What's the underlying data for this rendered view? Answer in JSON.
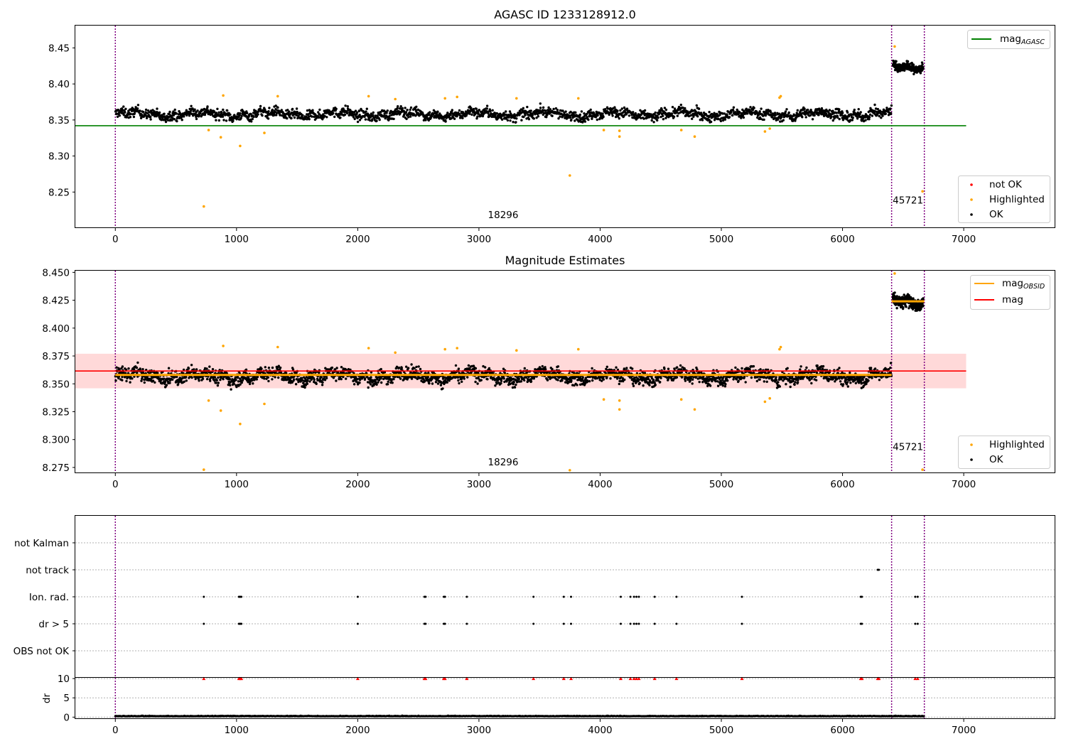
{
  "colors": {
    "ok": "#000000",
    "highlighted": "#ffa500",
    "not_ok": "#ff0000",
    "agasc_line": "#008000",
    "obsid_line": "#ffa500",
    "mean_line": "#ff0000",
    "band": "#ffcccc",
    "vline": "#800080",
    "hline_grid": "#b0b0b0"
  },
  "chart_data": [
    {
      "type": "scatter",
      "title": "AGASC ID 1233128912.0",
      "xlim": [
        -330,
        7750
      ],
      "ylim": [
        8.201,
        8.481
      ],
      "x_ticks": [
        0,
        1000,
        2000,
        3000,
        4000,
        5000,
        6000,
        7000
      ],
      "y_ticks": [
        8.25,
        8.3,
        8.35,
        8.4,
        8.45
      ],
      "y_tick_labels": [
        "8.25",
        "8.30",
        "8.35",
        "8.40",
        "8.45"
      ],
      "obsid_boundaries": [
        0,
        6405,
        6675
      ],
      "obsid_labels": [
        {
          "text": "18296",
          "x": 3200,
          "y": 8.214
        },
        {
          "text": "45721",
          "x": 6540,
          "y": 8.234
        }
      ],
      "lines": [
        {
          "name": "mag_AGASC",
          "y": 8.342,
          "x_range": [
            -330,
            7020
          ]
        }
      ],
      "ok_segments": [
        {
          "x_range": [
            0,
            6405
          ],
          "center": 8.358,
          "spread": 0.009,
          "n": 2200
        },
        {
          "x_range": [
            6415,
            6665
          ],
          "center": 8.424,
          "spread": 0.008,
          "n": 240
        }
      ],
      "series": [
        {
          "name": "not OK"
        },
        {
          "name": "Highlighted",
          "points": [
            [
              730,
              8.23
            ],
            [
              770,
              8.336
            ],
            [
              870,
              8.326
            ],
            [
              890,
              8.384
            ],
            [
              1030,
              8.314
            ],
            [
              1230,
              8.332
            ],
            [
              1340,
              8.383
            ],
            [
              2090,
              8.383
            ],
            [
              2310,
              8.379
            ],
            [
              2720,
              8.38
            ],
            [
              2820,
              8.382
            ],
            [
              3310,
              8.38
            ],
            [
              3750,
              8.273
            ],
            [
              3820,
              8.38
            ],
            [
              4030,
              8.336
            ],
            [
              4160,
              8.327
            ],
            [
              4160,
              8.335
            ],
            [
              4670,
              8.336
            ],
            [
              4780,
              8.327
            ],
            [
              5360,
              8.334
            ],
            [
              5400,
              8.338
            ],
            [
              5480,
              8.381
            ],
            [
              5490,
              8.383
            ],
            [
              6430,
              8.452
            ],
            [
              6660,
              8.251
            ]
          ]
        },
        {
          "name": "OK"
        }
      ],
      "legend": [
        {
          "label": "mag",
          "sub": "AGASC",
          "kind": "line",
          "color": "#008000",
          "position": "top-right"
        },
        {
          "label": "not OK",
          "kind": "dot",
          "color": "#ff0000",
          "position": "bottom-right"
        },
        {
          "label": "Highlighted",
          "kind": "dot",
          "color": "#ffa500",
          "position": "bottom-right"
        },
        {
          "label": "OK",
          "kind": "dot",
          "color": "#000000",
          "position": "bottom-right"
        }
      ]
    },
    {
      "type": "scatter",
      "title": "Magnitude Estimates",
      "xlim": [
        -330,
        7750
      ],
      "ylim": [
        8.2705,
        8.4515
      ],
      "x_ticks": [
        0,
        1000,
        2000,
        3000,
        4000,
        5000,
        6000,
        7000
      ],
      "y_ticks": [
        8.275,
        8.3,
        8.325,
        8.35,
        8.375,
        8.4,
        8.425,
        8.45
      ],
      "y_tick_labels": [
        "8.275",
        "8.300",
        "8.325",
        "8.350",
        "8.375",
        "8.400",
        "8.425",
        "8.450"
      ],
      "obsid_boundaries": [
        0,
        6405,
        6675
      ],
      "obsid_labels": [
        {
          "text": "18296",
          "x": 3200,
          "y": 8.2768
        },
        {
          "text": "45721",
          "x": 6540,
          "y": 8.2905
        }
      ],
      "band": {
        "y_range": [
          8.346,
          8.377
        ],
        "x_range": [
          -330,
          7020
        ]
      },
      "lines": [
        {
          "name": "mag",
          "y": 8.3615,
          "x_range": [
            -330,
            7020
          ]
        },
        {
          "name": "mag_OBSID",
          "y": 8.358,
          "x_range": [
            0,
            6405
          ]
        },
        {
          "name": "mag_OBSID",
          "y": 8.424,
          "x_range": [
            6405,
            6675
          ]
        }
      ],
      "ok_segments": [
        {
          "x_range": [
            0,
            6405
          ],
          "center": 8.357,
          "spread": 0.008,
          "n": 2600
        },
        {
          "x_range": [
            6415,
            6665
          ],
          "center": 8.424,
          "spread": 0.007,
          "n": 300
        }
      ],
      "series": [
        {
          "name": "Highlighted",
          "points": [
            [
              730,
              8.273
            ],
            [
              770,
              8.335
            ],
            [
              870,
              8.326
            ],
            [
              890,
              8.384
            ],
            [
              1030,
              8.314
            ],
            [
              1230,
              8.332
            ],
            [
              1340,
              8.383
            ],
            [
              2090,
              8.382
            ],
            [
              2310,
              8.378
            ],
            [
              2720,
              8.381
            ],
            [
              2820,
              8.382
            ],
            [
              3310,
              8.38
            ],
            [
              3750,
              8.2725
            ],
            [
              3820,
              8.381
            ],
            [
              4030,
              8.336
            ],
            [
              4160,
              8.327
            ],
            [
              4160,
              8.335
            ],
            [
              4670,
              8.336
            ],
            [
              4780,
              8.327
            ],
            [
              5360,
              8.334
            ],
            [
              5400,
              8.337
            ],
            [
              5480,
              8.381
            ],
            [
              5490,
              8.383
            ],
            [
              6430,
              8.449
            ],
            [
              6660,
              8.273
            ]
          ]
        },
        {
          "name": "OK"
        }
      ],
      "legend": [
        {
          "label": "mag",
          "sub": "OBSID",
          "kind": "line",
          "color": "#ffa500",
          "position": "top-right"
        },
        {
          "label": "mag",
          "kind": "line",
          "color": "#ff0000",
          "position": "top-right"
        },
        {
          "label": "Highlighted",
          "kind": "dot",
          "color": "#ffa500",
          "position": "bottom-right"
        },
        {
          "label": "OK",
          "kind": "dot",
          "color": "#000000",
          "position": "bottom-right"
        }
      ]
    },
    {
      "type": "scatter",
      "xlim": [
        -330,
        7750
      ],
      "categories": [
        "not Kalman",
        "not track",
        "Ion. rad.",
        "dr > 5",
        "OBS not OK"
      ],
      "flags": {
        "not track": [
          6290,
          6300
        ],
        "Ion. rad.": [
          730,
          1020,
          1030,
          1040,
          2000,
          2550,
          2560,
          2710,
          2720,
          2900,
          3450,
          3700,
          3760,
          4170,
          4250,
          4280,
          4300,
          4320,
          4450,
          4630,
          5170,
          6150,
          6160,
          6600,
          6620
        ],
        "dr > 5": [
          730,
          1020,
          1030,
          1040,
          2000,
          2550,
          2560,
          2710,
          2720,
          2900,
          3450,
          3700,
          3760,
          4170,
          4250,
          4280,
          4300,
          4320,
          4450,
          4630,
          5170,
          6150,
          6160,
          6600,
          6620
        ]
      },
      "obsid_boundaries": [
        0,
        6405,
        6675
      ]
    },
    {
      "type": "scatter",
      "ylabel": "dr",
      "xlim": [
        -330,
        7750
      ],
      "ylim": [
        -0.3,
        10.2
      ],
      "x_ticks": [
        0,
        1000,
        2000,
        3000,
        4000,
        5000,
        6000,
        7000
      ],
      "y_ticks": [
        0,
        5,
        10
      ],
      "y_tick_labels": [
        "0",
        "5",
        "10"
      ],
      "obsid_boundaries": [
        0,
        6405,
        6675
      ],
      "dr_baseline": {
        "center": 0.2,
        "spread": 0.1,
        "n": 1500
      },
      "dr_clipped_x": [
        730,
        1020,
        1030,
        1040,
        2000,
        2550,
        2560,
        2710,
        2720,
        2900,
        3450,
        3700,
        3760,
        4170,
        4250,
        4280,
        4300,
        4320,
        4450,
        4630,
        5170,
        6150,
        6160,
        6290,
        6300,
        6600,
        6620
      ]
    }
  ]
}
